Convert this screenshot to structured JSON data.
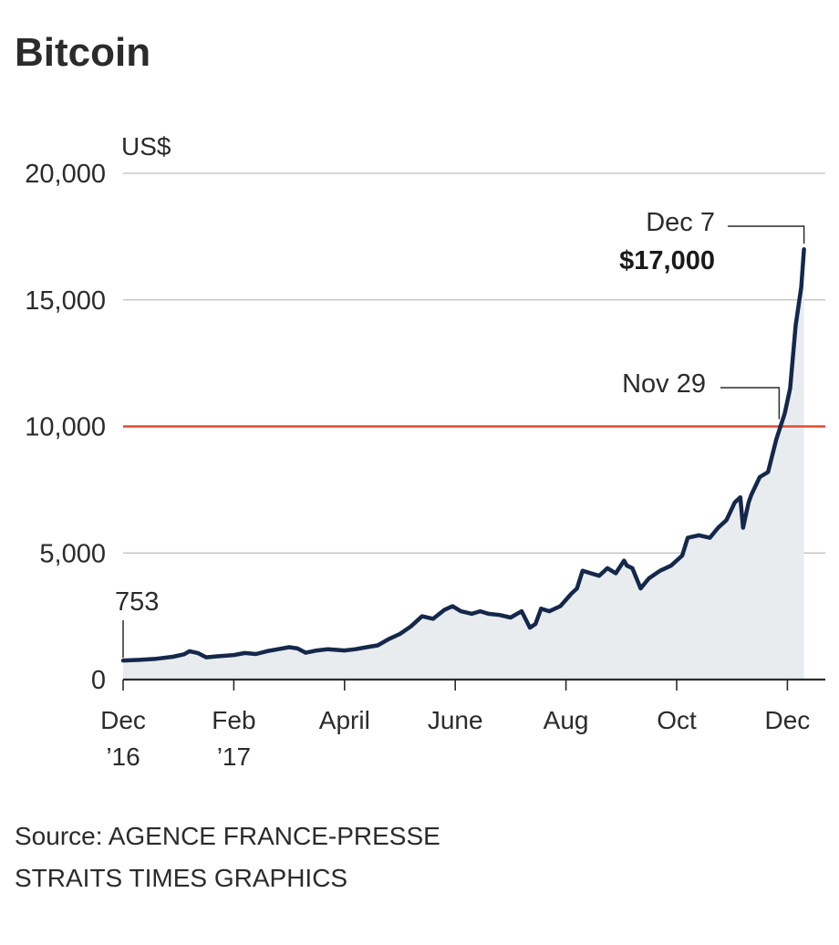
{
  "chart_data": {
    "type": "line",
    "title": "Bitcoin",
    "ylabel": "US$",
    "xlabel": "",
    "ylim": [
      0,
      20000
    ],
    "xlim": [
      0,
      12.3
    ],
    "y_ticks": [
      {
        "value": 0,
        "label": "0"
      },
      {
        "value": 5000,
        "label": "5,000"
      },
      {
        "value": 10000,
        "label": "10,000"
      },
      {
        "value": 15000,
        "label": "15,000"
      },
      {
        "value": 20000,
        "label": "20,000"
      }
    ],
    "x_ticks": [
      {
        "value": 0,
        "label": "Dec",
        "sublabel": "’16"
      },
      {
        "value": 2,
        "label": "Feb",
        "sublabel": "’17"
      },
      {
        "value": 4,
        "label": "April",
        "sublabel": ""
      },
      {
        "value": 6,
        "label": "June",
        "sublabel": ""
      },
      {
        "value": 8,
        "label": "Aug",
        "sublabel": ""
      },
      {
        "value": 10,
        "label": "Oct",
        "sublabel": ""
      },
      {
        "value": 12,
        "label": "Dec",
        "sublabel": ""
      }
    ],
    "reference_line": {
      "value": 10000,
      "label": "10,000",
      "color": "#e04a2f"
    },
    "series": [
      {
        "name": "Bitcoin price",
        "color": "#14284b",
        "x": [
          0,
          0.3,
          0.6,
          0.9,
          1.1,
          1.2,
          1.35,
          1.5,
          1.7,
          2.0,
          2.2,
          2.4,
          2.6,
          2.8,
          3.0,
          3.15,
          3.3,
          3.5,
          3.7,
          4.0,
          4.2,
          4.4,
          4.6,
          4.8,
          5.0,
          5.2,
          5.4,
          5.6,
          5.8,
          5.95,
          6.1,
          6.3,
          6.45,
          6.6,
          6.8,
          7.0,
          7.2,
          7.35,
          7.45,
          7.55,
          7.7,
          7.9,
          8.1,
          8.2,
          8.3,
          8.45,
          8.6,
          8.75,
          8.9,
          9.05,
          9.1,
          9.2,
          9.35,
          9.5,
          9.7,
          9.9,
          10.1,
          10.2,
          10.4,
          10.6,
          10.75,
          10.9,
          11.05,
          11.15,
          11.2,
          11.3,
          11.35,
          11.5,
          11.65,
          11.8,
          11.95,
          12.05,
          12.15,
          12.25,
          12.3
        ],
        "values": [
          753,
          780,
          820,
          900,
          1000,
          1120,
          1050,
          880,
          920,
          970,
          1050,
          1010,
          1120,
          1200,
          1280,
          1230,
          1060,
          1150,
          1200,
          1150,
          1200,
          1280,
          1350,
          1600,
          1800,
          2100,
          2500,
          2400,
          2750,
          2900,
          2700,
          2600,
          2700,
          2600,
          2550,
          2450,
          2700,
          2050,
          2200,
          2800,
          2700,
          2900,
          3400,
          3600,
          4300,
          4200,
          4100,
          4400,
          4200,
          4700,
          4500,
          4400,
          3600,
          4000,
          4300,
          4500,
          4900,
          5600,
          5700,
          5600,
          6000,
          6300,
          7000,
          7200,
          6000,
          7000,
          7300,
          8000,
          8200,
          9500,
          10500,
          11500,
          14000,
          15500,
          17000
        ]
      }
    ],
    "annotations": {
      "start_label": "753",
      "nov29_label": "Nov 29",
      "dec7_label": "Dec 7",
      "dec7_value": "$17,000",
      "start_point": {
        "x": 0,
        "y": 753
      },
      "nov29_point": {
        "x": 11.95,
        "y": 10000
      },
      "dec7_point": {
        "x": 12.3,
        "y": 17000
      }
    }
  },
  "footer": {
    "source": "Source: AGENCE FRANCE-PRESSE",
    "credit": "STRAITS TIMES GRAPHICS"
  },
  "colors": {
    "line": "#14284b",
    "fill": "#e9ecef",
    "grid": "#bdbdbd",
    "axis": "#2b2b2b",
    "reference": "#e04a2f"
  }
}
